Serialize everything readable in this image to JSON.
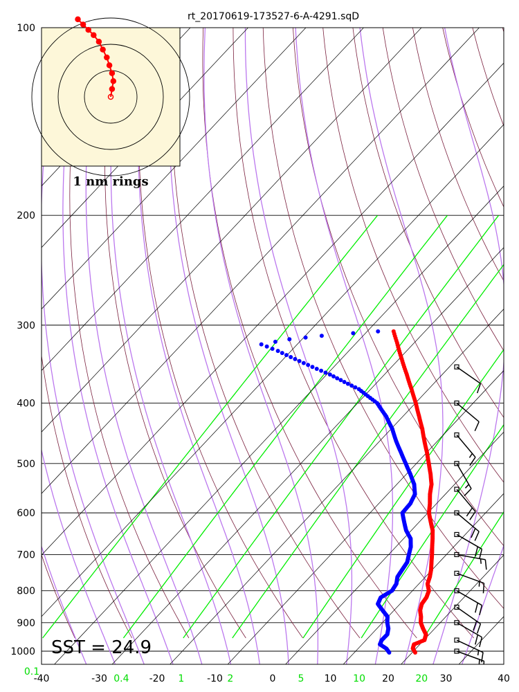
{
  "title": "rt_20170619-173527-6-A-4291.sqD",
  "colors": {
    "temperature": "#ff0000",
    "dewpoint": "#0000ff",
    "dry_adiabat": "#7a1f3d",
    "moist_adiabat": "#bb77ee",
    "mixing_ratio": "#00ee00",
    "isotherm": "#000000",
    "inset_fill": "#fdf7d9",
    "hodograph": "#ff0000"
  },
  "sst_label": "SST = 24.9",
  "rings_label": "1 nm rings",
  "chart_data": {
    "type": "scatter",
    "diagram": "skew-T log-P",
    "title": "rt_20170619-173527-6-A-4291.sqD",
    "x_axis": {
      "ticks": [
        -40,
        -30,
        -20,
        -10,
        0,
        10,
        20,
        30,
        40
      ],
      "xlim": [
        -40,
        40
      ]
    },
    "y_axis": {
      "scale": "log",
      "ticks": [
        100,
        200,
        300,
        400,
        500,
        600,
        700,
        800,
        900,
        1000
      ],
      "ylim": [
        1050,
        100
      ]
    },
    "mixing_ratio_labels": [
      "0.1",
      "0.4",
      "1",
      "2",
      "5",
      "10",
      "20"
    ],
    "mixing_ratio_values": [
      0.1,
      0.4,
      1,
      2,
      5,
      10,
      20
    ],
    "isotherm_values": [
      -120,
      -110,
      -100,
      -90,
      -80,
      -70,
      -60,
      -50,
      -40,
      -30,
      -20,
      -10,
      0,
      10,
      20,
      30,
      40
    ],
    "dry_adiabat_thetas_K": [
      230,
      240,
      250,
      260,
      270,
      280,
      290,
      300,
      310,
      320,
      330,
      340,
      350,
      360,
      370,
      380,
      390,
      400,
      410,
      420,
      430,
      440,
      450,
      460,
      470,
      480,
      490,
      500,
      510,
      520,
      530
    ],
    "moist_adiabat_start_temps_C": [
      -30,
      -25,
      -20,
      -15,
      -10,
      -5,
      0,
      5,
      10,
      15,
      20,
      25,
      30,
      35
    ],
    "series": [
      {
        "kind": "temperature",
        "points": [
          {
            "p": 1005,
            "t": 24.9
          },
          {
            "p": 990,
            "t": 23.8
          },
          {
            "p": 975,
            "t": 23.3
          },
          {
            "p": 960,
            "t": 24.4
          },
          {
            "p": 940,
            "t": 23.7
          },
          {
            "p": 920,
            "t": 22.2
          },
          {
            "p": 900,
            "t": 20.8
          },
          {
            "p": 880,
            "t": 19.8
          },
          {
            "p": 860,
            "t": 18.6
          },
          {
            "p": 840,
            "t": 17.8
          },
          {
            "p": 820,
            "t": 17.5
          },
          {
            "p": 800,
            "t": 16.8
          },
          {
            "p": 780,
            "t": 15.4
          },
          {
            "p": 760,
            "t": 14.6
          },
          {
            "p": 740,
            "t": 13.6
          },
          {
            "p": 720,
            "t": 12.4
          },
          {
            "p": 700,
            "t": 11.2
          },
          {
            "p": 680,
            "t": 9.9
          },
          {
            "p": 660,
            "t": 8.6
          },
          {
            "p": 640,
            "t": 7.2
          },
          {
            "p": 620,
            "t": 5.4
          },
          {
            "p": 600,
            "t": 3.6
          },
          {
            "p": 580,
            "t": 2.2
          },
          {
            "p": 560,
            "t": 0.6
          },
          {
            "p": 540,
            "t": -0.8
          },
          {
            "p": 520,
            "t": -2.7
          },
          {
            "p": 500,
            "t": -4.8
          },
          {
            "p": 480,
            "t": -7.0
          },
          {
            "p": 460,
            "t": -9.4
          },
          {
            "p": 440,
            "t": -11.8
          },
          {
            "p": 420,
            "t": -14.5
          },
          {
            "p": 400,
            "t": -17.3
          },
          {
            "p": 380,
            "t": -20.4
          },
          {
            "p": 360,
            "t": -23.7
          },
          {
            "p": 340,
            "t": -27.2
          },
          {
            "p": 320,
            "t": -30.8
          },
          {
            "p": 307,
            "t": -33.3
          }
        ]
      },
      {
        "kind": "dewpoint",
        "points": [
          {
            "p": 1005,
            "t": 20.4
          },
          {
            "p": 990,
            "t": 19.2
          },
          {
            "p": 975,
            "t": 17.4
          },
          {
            "p": 960,
            "t": 17.0
          },
          {
            "p": 940,
            "t": 17.0
          },
          {
            "p": 920,
            "t": 16.2
          },
          {
            "p": 900,
            "t": 15.0
          },
          {
            "p": 880,
            "t": 14.0
          },
          {
            "p": 860,
            "t": 12.1
          },
          {
            "p": 840,
            "t": 10.2
          },
          {
            "p": 820,
            "t": 9.6
          },
          {
            "p": 800,
            "t": 10.4
          },
          {
            "p": 780,
            "t": 10.0
          },
          {
            "p": 760,
            "t": 9.0
          },
          {
            "p": 740,
            "t": 8.6
          },
          {
            "p": 720,
            "t": 8.2
          },
          {
            "p": 700,
            "t": 7.2
          },
          {
            "p": 680,
            "t": 6.2
          },
          {
            "p": 660,
            "t": 4.8
          },
          {
            "p": 640,
            "t": 2.6
          },
          {
            "p": 620,
            "t": 0.8
          },
          {
            "p": 600,
            "t": -1.0
          },
          {
            "p": 580,
            "t": -1.2
          },
          {
            "p": 560,
            "t": -2.0
          },
          {
            "p": 540,
            "t": -3.8
          },
          {
            "p": 520,
            "t": -6.2
          },
          {
            "p": 500,
            "t": -8.8
          },
          {
            "p": 480,
            "t": -11.5
          },
          {
            "p": 460,
            "t": -14.3
          },
          {
            "p": 440,
            "t": -17.0
          },
          {
            "p": 420,
            "t": -20.2
          },
          {
            "p": 400,
            "t": -24.0
          },
          {
            "p": 380,
            "t": -29.5
          },
          {
            "p": 360,
            "t": -37.0
          },
          {
            "p": 345,
            "t": -43.5
          },
          {
            "p": 330,
            "t": -50.0
          },
          {
            "p": 322,
            "t": -54.0
          },
          {
            "p": 316,
            "t": -50.0
          },
          {
            "p": 312,
            "t": -45.0
          },
          {
            "p": 309,
            "t": -40.0
          },
          {
            "p": 307,
            "t": -36.0
          }
        ]
      }
    ],
    "wind_barbs": [
      {
        "p": 1000,
        "dir": 110,
        "speed": 18
      },
      {
        "p": 960,
        "dir": 115,
        "speed": 15
      },
      {
        "p": 900,
        "dir": 120,
        "speed": 20
      },
      {
        "p": 850,
        "dir": 125,
        "speed": 20
      },
      {
        "p": 800,
        "dir": 120,
        "speed": 22
      },
      {
        "p": 750,
        "dir": 110,
        "speed": 17
      },
      {
        "p": 700,
        "dir": 100,
        "speed": 15
      },
      {
        "p": 650,
        "dir": 120,
        "speed": 22
      },
      {
        "p": 600,
        "dir": 130,
        "speed": 22
      },
      {
        "p": 550,
        "dir": 140,
        "speed": 20
      },
      {
        "p": 500,
        "dir": 150,
        "speed": 17
      },
      {
        "p": 450,
        "dir": 140,
        "speed": 15
      },
      {
        "p": 400,
        "dir": 130,
        "speed": 12
      },
      {
        "p": 350,
        "dir": 125,
        "speed": 12
      }
    ],
    "hodograph": {
      "ring_labels": "1 nm rings",
      "ring_radii_nm": [
        1,
        2,
        3
      ],
      "points_nm": [
        [
          0.0,
          0.0
        ],
        [
          0.05,
          0.3
        ],
        [
          0.1,
          0.6
        ],
        [
          0.05,
          0.9
        ],
        [
          -0.05,
          1.2
        ],
        [
          -0.15,
          1.5
        ],
        [
          -0.3,
          1.8
        ],
        [
          -0.45,
          2.1
        ],
        [
          -0.65,
          2.35
        ],
        [
          -0.85,
          2.55
        ],
        [
          -1.05,
          2.75
        ],
        [
          -1.25,
          2.95
        ]
      ]
    }
  }
}
